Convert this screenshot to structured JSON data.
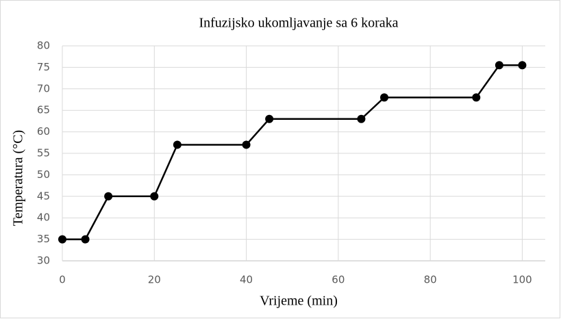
{
  "chart_data": {
    "type": "line",
    "title": "Infuzijsko ukomljavanje sa 6 koraka",
    "xlabel": "Vrijeme (min)",
    "ylabel": "Temperatura (°C)",
    "x": [
      0,
      5,
      10,
      20,
      25,
      40,
      45,
      65,
      70,
      90,
      95,
      100
    ],
    "values": [
      35,
      35,
      45,
      45,
      57,
      57,
      63,
      63,
      68,
      68,
      75.5,
      75.5
    ],
    "color": "#000000",
    "xlim": [
      0,
      105
    ],
    "xticks": [
      0,
      20,
      40,
      60,
      80,
      100
    ],
    "ylim": [
      30,
      80
    ],
    "yticks": [
      30,
      35,
      40,
      45,
      50,
      55,
      60,
      65,
      70,
      75,
      80
    ],
    "grid": true
  }
}
